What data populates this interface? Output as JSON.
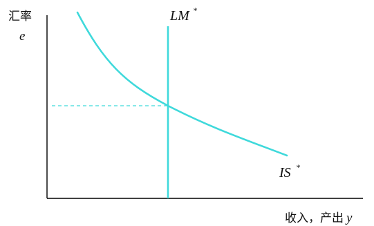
{
  "labels": {
    "y_axis_name": "汇率",
    "y_axis_symbol": "e",
    "x_axis_name": "收入，产出",
    "x_axis_symbol": "y",
    "lm_curve": "LM",
    "lm_star": "*",
    "is_curve": "IS",
    "is_star": "*"
  },
  "colors": {
    "curve": "#3fd9db",
    "axis": "#000000",
    "text": "#111111"
  }
}
